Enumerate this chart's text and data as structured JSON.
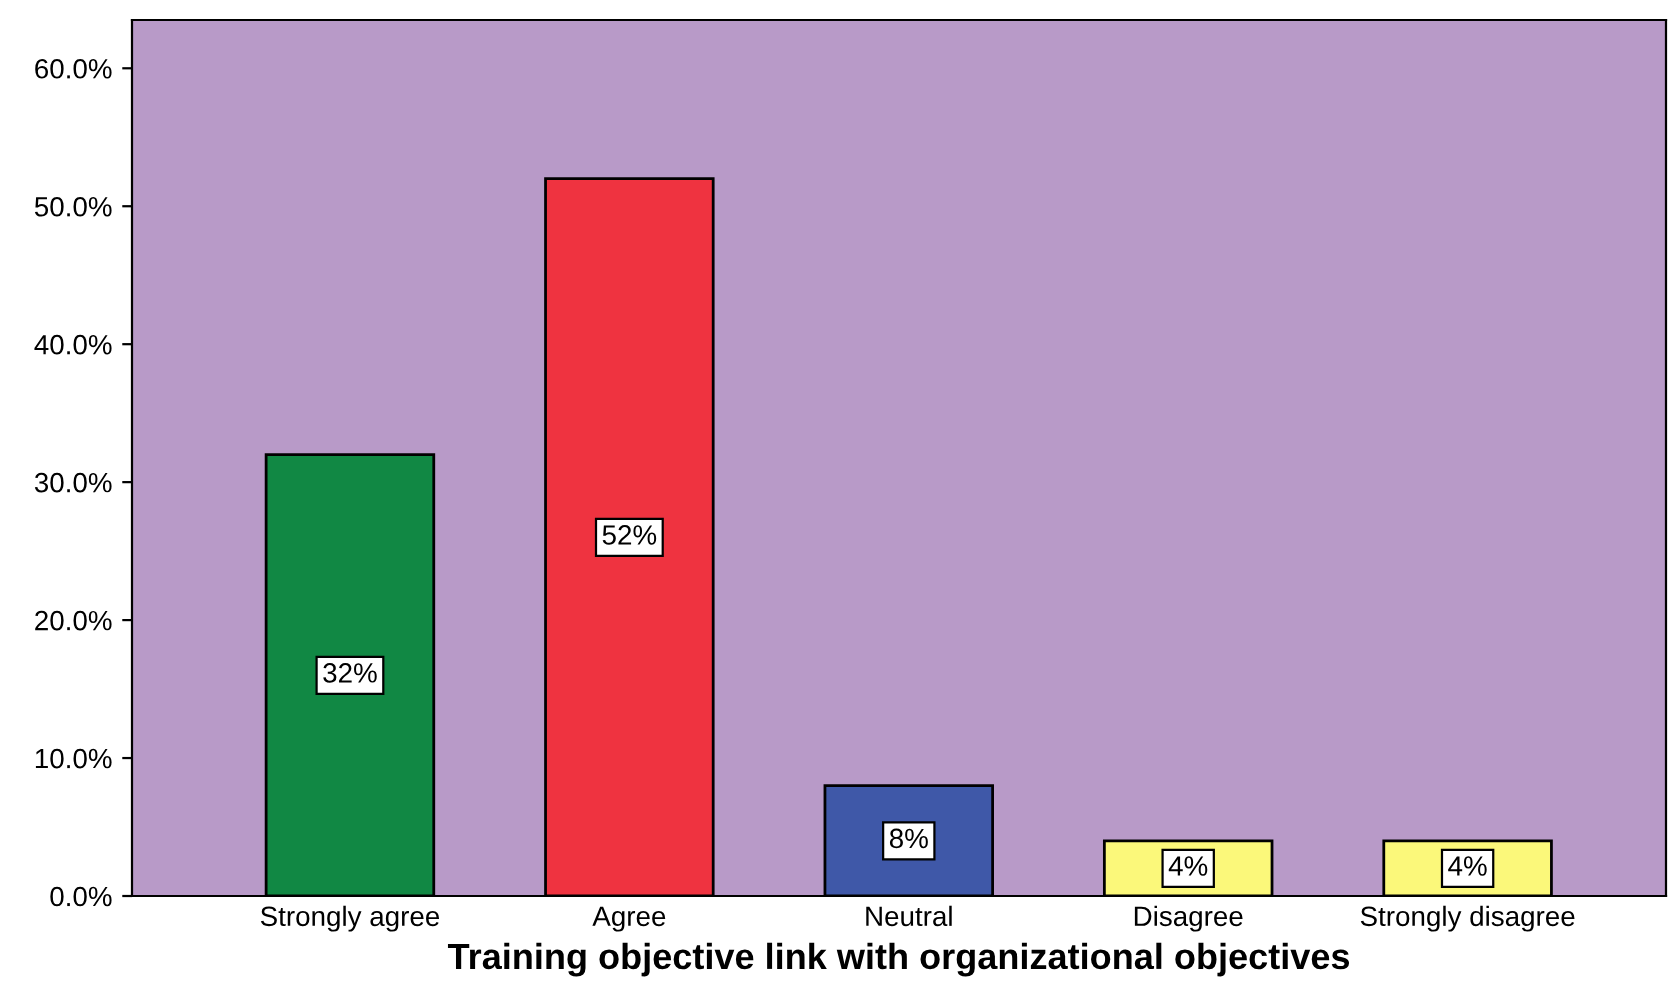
{
  "chart_data": {
    "type": "bar",
    "xlabel": "Training objective link with organizational objectives",
    "categories": [
      "Strongly agree",
      "Agree",
      "Neutral",
      "Disagree",
      "Strongly disagree"
    ],
    "values": [
      32,
      52,
      8,
      4,
      4
    ],
    "colors": [
      "#118844",
      "#ef3340",
      "#3f58a8",
      "#fbf87a",
      "#fbf87a"
    ],
    "value_labels": [
      "32%",
      "52%",
      "8%",
      "4%",
      "4%"
    ],
    "ylim": [
      0,
      63.5
    ],
    "yticks": [
      {
        "value": 0,
        "label": "0.0%"
      },
      {
        "value": 10,
        "label": "10.0%"
      },
      {
        "value": 20,
        "label": "20.0%"
      },
      {
        "value": 30,
        "label": "30.0%"
      },
      {
        "value": 40,
        "label": "40.0%"
      },
      {
        "value": 50,
        "label": "50.0%"
      },
      {
        "value": 60,
        "label": "60.0%"
      }
    ],
    "grid": false,
    "legend": false
  }
}
